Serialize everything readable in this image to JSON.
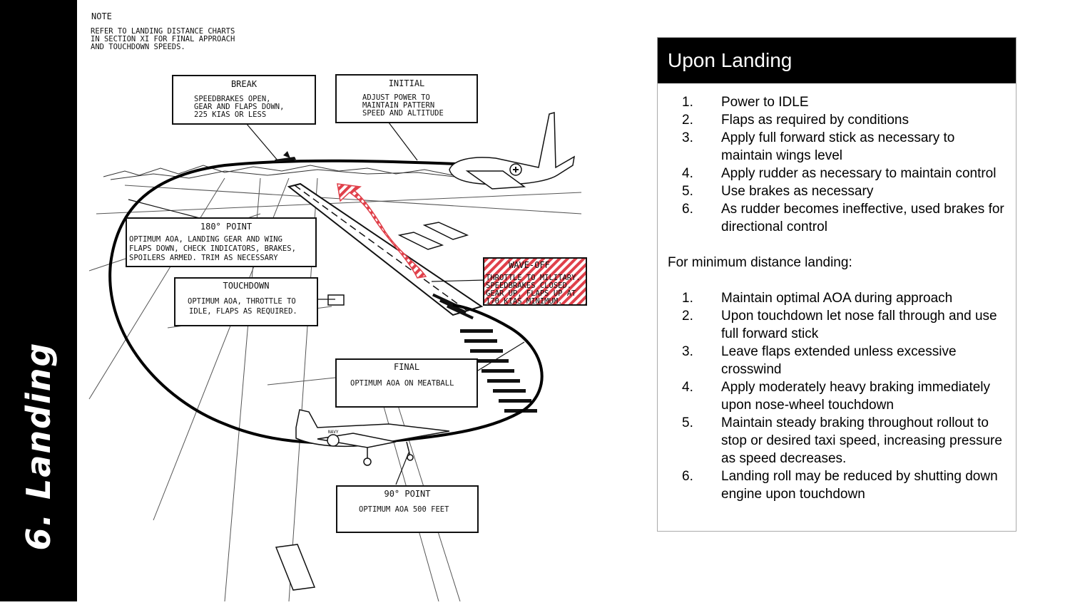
{
  "sidebar": {
    "title": "6. Landing"
  },
  "diagram": {
    "note_title": "NOTE",
    "note_lines": [
      "REFER TO LANDING DISTANCE CHARTS",
      "IN SECTION XI FOR FINAL APPROACH",
      "AND TOUCHDOWN SPEEDS."
    ],
    "break": {
      "title": "BREAK",
      "lines": [
        "SPEEDBRAKES OPEN,",
        "GEAR AND FLAPS DOWN,",
        "225 KIAS OR LESS"
      ]
    },
    "initial": {
      "title": "INITIAL",
      "lines": [
        "ADJUST POWER TO",
        "MAINTAIN PATTERN",
        "SPEED AND ALTITUDE"
      ]
    },
    "point180": {
      "title": "180° POINT",
      "lines": [
        "OPTIMUM AOA, LANDING GEAR AND WING",
        "FLAPS DOWN, CHECK INDICATORS, BRAKES,",
        "SPOILERS ARMED. TRIM AS NECESSARY"
      ]
    },
    "touchdown": {
      "title": "TOUCHDOWN",
      "lines": [
        "OPTIMUM AOA, THROTTLE TO",
        "IDLE, FLAPS AS REQUIRED."
      ]
    },
    "waveoff": {
      "title": "WAVE-OFF",
      "lines": [
        "THROTTLE TO MILITARY.",
        "SPEEDBRAKES CLOSED.",
        "GEAR UP, FLAPS UP AT",
        "170 KIAS MINIMUM."
      ]
    },
    "final": {
      "title": "FINAL",
      "lines": [
        "OPTIMUM AOA ON MEATBALL"
      ]
    },
    "point90": {
      "title": "90° POINT",
      "lines": [
        "OPTIMUM AOA 500 FEET"
      ]
    },
    "aircraft_marking": "NAVY"
  },
  "panel": {
    "title": "Upon Landing",
    "landing_steps": [
      {
        "num": "1.",
        "text": "Power to IDLE"
      },
      {
        "num": "2.",
        "text": "Flaps as required by conditions"
      },
      {
        "num": "3.",
        "text": "Apply full forward stick as necessary to maintain wings level"
      },
      {
        "num": "4.",
        "text": "Apply rudder as necessary to maintain control"
      },
      {
        "num": "5.",
        "text": "Use brakes as necessary"
      },
      {
        "num": "6.",
        "text": "As rudder becomes ineffective, used brakes for directional control"
      }
    ],
    "min_distance_heading": "For minimum distance landing:",
    "min_distance_steps": [
      {
        "num": "1.",
        "text": "Maintain optimal AOA during approach"
      },
      {
        "num": "2.",
        "text": "Upon touchdown let nose fall through and use full forward stick"
      },
      {
        "num": "3.",
        "text": "Leave flaps extended unless excessive crosswind"
      },
      {
        "num": "4.",
        "text": "Apply moderately heavy braking immediately upon nose-wheel touchdown"
      },
      {
        "num": "5.",
        "text": "Maintain steady braking throughout rollout to stop or desired taxi speed, increasing pressure as speed decreases."
      },
      {
        "num": "6.",
        "text": "Landing roll may be reduced by shutting down engine upon touchdown"
      }
    ]
  }
}
